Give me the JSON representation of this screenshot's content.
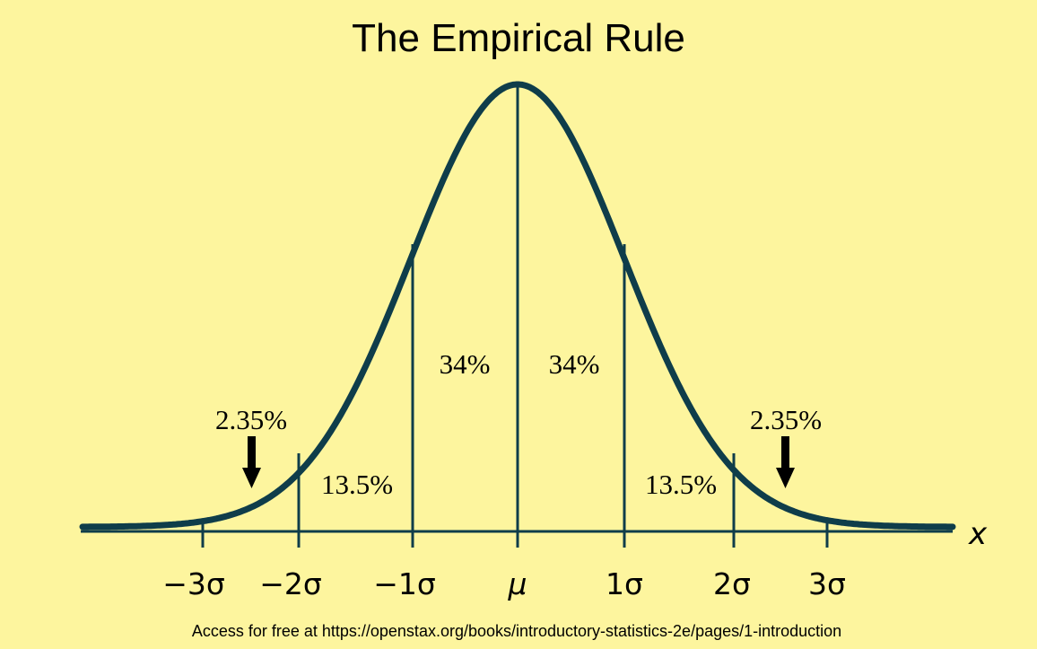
{
  "title": "The Empirical Rule",
  "axis_variable": "x",
  "tick_labels": [
    "−3σ",
    "−2σ",
    "−1σ",
    "μ",
    "1σ",
    "2σ",
    "3σ"
  ],
  "regions": [
    {
      "label": "2.35%",
      "side": "left-tail"
    },
    {
      "label": "13.5%",
      "side": "left"
    },
    {
      "label": "34%",
      "side": "left-center"
    },
    {
      "label": "34%",
      "side": "right-center"
    },
    {
      "label": "13.5%",
      "side": "right"
    },
    {
      "label": "2.35%",
      "side": "right-tail"
    }
  ],
  "footer": "Access for free at https://openstax.org/books/introductory-statistics-2e/pages/1-introduction",
  "colors": {
    "background": "#fdf59e",
    "curve": "#0f3d4a",
    "text": "#000000"
  }
}
